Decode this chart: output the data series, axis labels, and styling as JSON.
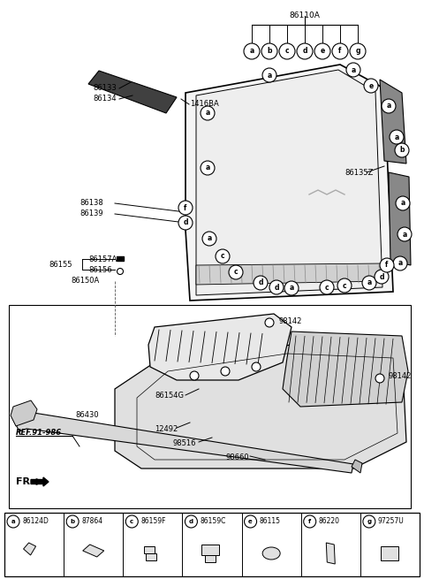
{
  "fig_width": 4.8,
  "fig_height": 6.55,
  "dpi": 100,
  "background_color": "#ffffff",
  "legend_items": [
    {
      "letter": "a",
      "part": "86124D"
    },
    {
      "letter": "b",
      "part": "87864"
    },
    {
      "letter": "c",
      "part": "86159F"
    },
    {
      "letter": "d",
      "part": "86159C"
    },
    {
      "letter": "e",
      "part": "86115"
    },
    {
      "letter": "f",
      "part": "86220"
    },
    {
      "letter": "g",
      "part": "97257U"
    }
  ]
}
